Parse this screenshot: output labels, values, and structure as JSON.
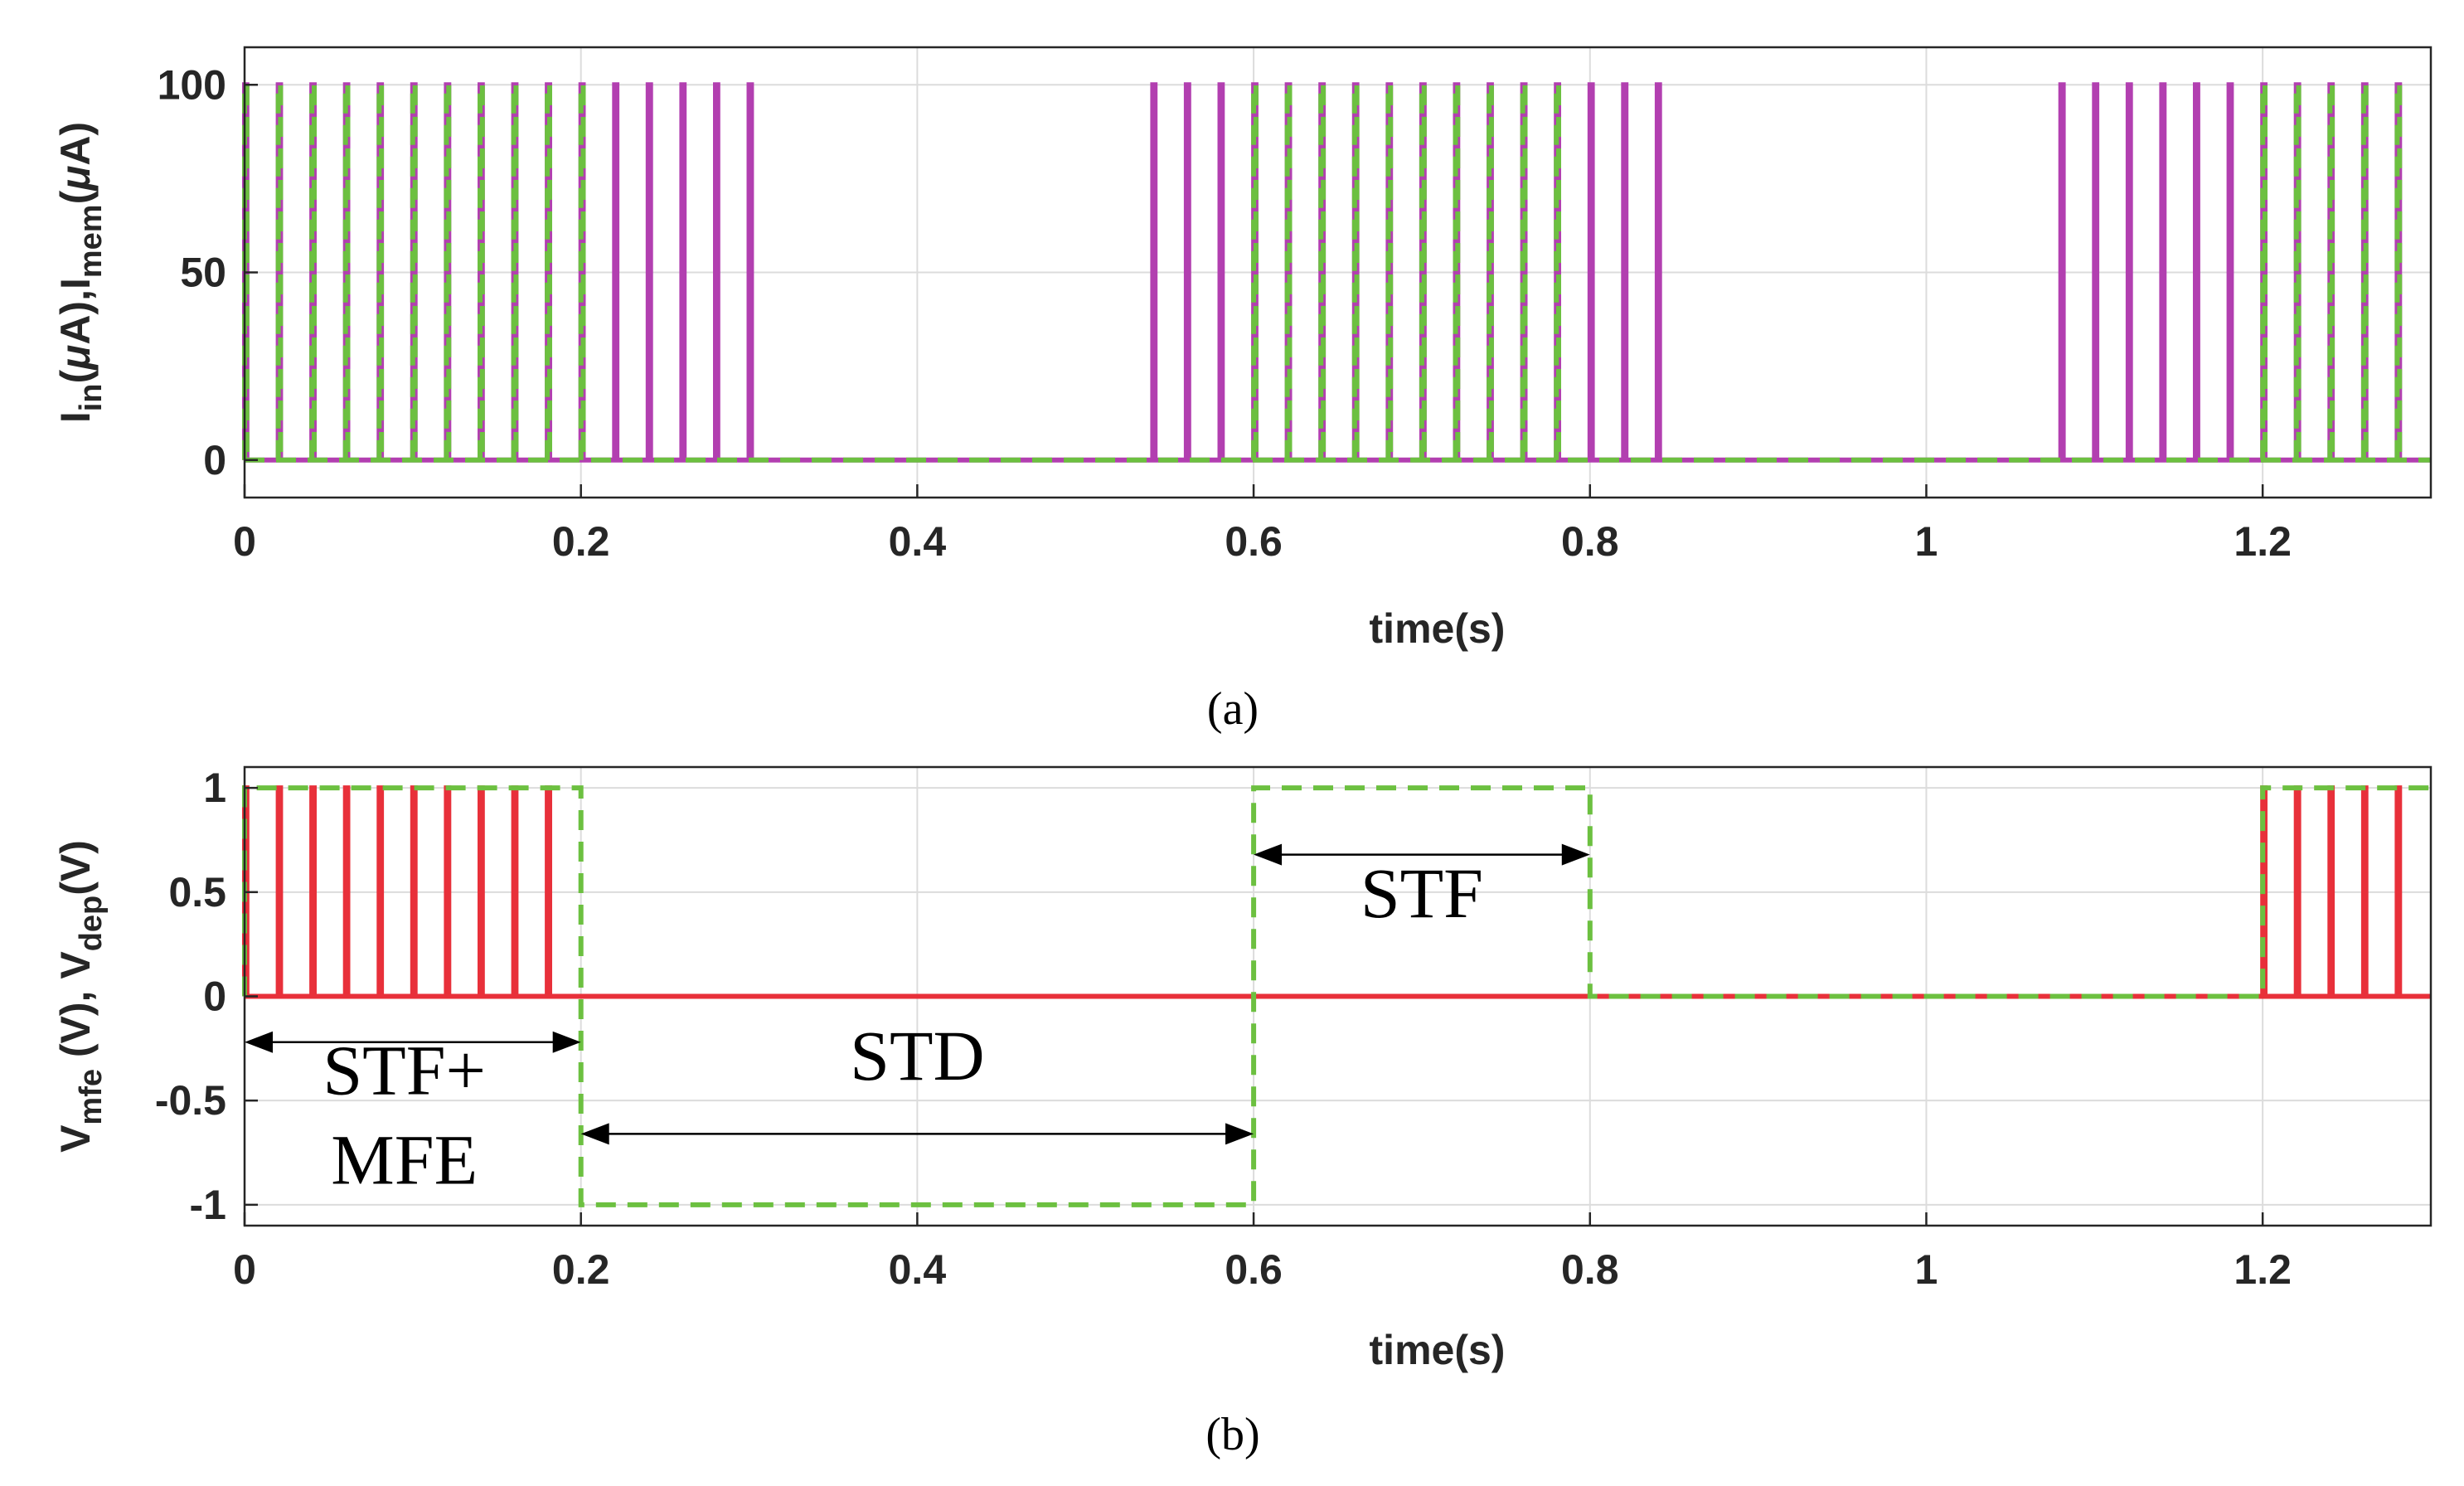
{
  "chart_data": [
    {
      "id": "a",
      "type": "line",
      "caption": "(a)",
      "xlabel": "time(s)",
      "ylabel": "I_in(μA),I_mem(μA)",
      "ylabel_parts": [
        {
          "t": "I",
          "sub": false
        },
        {
          "t": "in",
          "sub": true
        },
        {
          "t": "(",
          "sub": false
        },
        {
          "t": "μ",
          "sub": false,
          "italic": true
        },
        {
          "t": "A),I",
          "sub": false
        },
        {
          "t": "mem",
          "sub": true
        },
        {
          "t": "(",
          "sub": false
        },
        {
          "t": "μ",
          "sub": false,
          "italic": true
        },
        {
          "t": "A)",
          "sub": false
        }
      ],
      "xlim": [
        0,
        1.3
      ],
      "ylim": [
        -10,
        110
      ],
      "xticks": [
        0,
        0.2,
        0.4,
        0.6,
        0.8,
        1,
        1.2
      ],
      "xticklabels": [
        "0",
        "0.2",
        "0.4",
        "0.6",
        "0.8",
        "1",
        "1.2"
      ],
      "yticks": [
        0,
        50,
        100
      ],
      "yticklabels": [
        "0",
        "50",
        "100"
      ],
      "grid": true,
      "pulse_height": 100,
      "series": [
        {
          "name": "I_in",
          "color": "#B23FB0",
          "dashed": false,
          "pulse_times": [
            0,
            0.02,
            0.04,
            0.06,
            0.08,
            0.1,
            0.12,
            0.14,
            0.16,
            0.18,
            0.2,
            0.22,
            0.24,
            0.26,
            0.28,
            0.3,
            0.54,
            0.56,
            0.58,
            0.6,
            0.62,
            0.64,
            0.66,
            0.68,
            0.7,
            0.72,
            0.74,
            0.76,
            0.78,
            0.8,
            0.82,
            0.84,
            1.08,
            1.1,
            1.12,
            1.14,
            1.16,
            1.18,
            1.2,
            1.22,
            1.24,
            1.26,
            1.28
          ]
        },
        {
          "name": "I_mem",
          "color": "#6CC040",
          "dashed": true,
          "pulse_times": [
            0,
            0.02,
            0.04,
            0.06,
            0.08,
            0.1,
            0.12,
            0.14,
            0.16,
            0.18,
            0.2,
            0.6,
            0.62,
            0.64,
            0.66,
            0.68,
            0.7,
            0.72,
            0.74,
            0.76,
            0.78,
            1.2,
            1.22,
            1.24,
            1.26,
            1.28
          ]
        }
      ]
    },
    {
      "id": "b",
      "type": "line",
      "caption": "(b)",
      "xlabel": "time(s)",
      "ylabel": "V_mfe (V), V_dep(V)",
      "ylabel_parts": [
        {
          "t": "V",
          "sub": false
        },
        {
          "t": "mfe",
          "sub": true
        },
        {
          "t": " (V), V",
          "sub": false
        },
        {
          "t": "dep",
          "sub": true
        },
        {
          "t": "(V)",
          "sub": false
        }
      ],
      "xlim": [
        0,
        1.3
      ],
      "ylim": [
        -1.1,
        1.1
      ],
      "xticks": [
        0,
        0.2,
        0.4,
        0.6,
        0.8,
        1,
        1.2
      ],
      "xticklabels": [
        "0",
        "0.2",
        "0.4",
        "0.6",
        "0.8",
        "1",
        "1.2"
      ],
      "yticks": [
        -1,
        -0.5,
        0,
        0.5,
        1
      ],
      "yticklabels": [
        "-1",
        "-0.5",
        "0",
        "0.5",
        "1"
      ],
      "grid": true,
      "series": [
        {
          "name": "V_mfe",
          "color": "#E8303A",
          "dashed": false,
          "kind": "pulses",
          "pulse_height": 1,
          "pulse_times": [
            0,
            0.02,
            0.04,
            0.06,
            0.08,
            0.1,
            0.12,
            0.14,
            0.16,
            0.18,
            1.2,
            1.22,
            1.24,
            1.26,
            1.28
          ]
        },
        {
          "name": "V_dep",
          "color": "#6CC040",
          "dashed": true,
          "kind": "step",
          "x": [
            0,
            0,
            0.2,
            0.2,
            0.6,
            0.6,
            0.8,
            0.8,
            1.2,
            1.2,
            1.3
          ],
          "y": [
            0,
            1,
            1,
            -1,
            -1,
            1,
            1,
            0,
            0,
            1,
            1
          ]
        }
      ],
      "annotations": [
        {
          "id": "stf-mfe",
          "lines": [
            "STF+",
            "MFE"
          ],
          "x_from": 0,
          "x_to": 0.2,
          "arrow_y": -0.22,
          "text_x": 0.095,
          "text_y": [
            -0.47,
            -0.9
          ]
        },
        {
          "id": "std",
          "lines": [
            "STD"
          ],
          "x_from": 0.2,
          "x_to": 0.6,
          "arrow_y": -0.66,
          "text_x": 0.4,
          "text_y": [
            -0.4
          ]
        },
        {
          "id": "stf",
          "lines": [
            "STF"
          ],
          "x_from": 0.6,
          "x_to": 0.8,
          "arrow_y": 0.68,
          "text_x": 0.7,
          "text_y": [
            0.38
          ]
        }
      ]
    }
  ]
}
